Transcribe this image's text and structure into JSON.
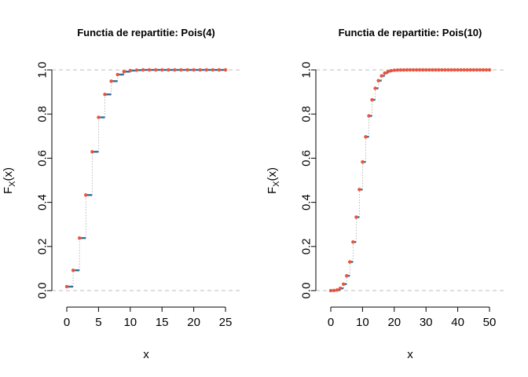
{
  "colors": {
    "step": "#2f6f98",
    "point": "#e8553e",
    "ref_line": "#bdbdbd"
  },
  "chart_data": [
    {
      "type": "line",
      "subtype": "step-cdf",
      "title": "Functia de repartitie: Pois(4)",
      "xlabel": "x",
      "ylabel": "F",
      "ylabel_sub": "X",
      "ylabel_suffix": "(x)",
      "lambda": 4,
      "xlim": [
        0,
        25
      ],
      "ylim": [
        0,
        1
      ],
      "xticks": [
        0,
        5,
        10,
        15,
        20,
        25
      ],
      "yticks": [
        0.0,
        0.2,
        0.4,
        0.6,
        0.8,
        1.0
      ],
      "ytick_labels": [
        "0.0",
        "0.2",
        "0.4",
        "0.6",
        "0.8",
        "1.0"
      ],
      "ref_lines_y": [
        0,
        1
      ],
      "grid": false,
      "x": [
        0,
        1,
        2,
        3,
        4,
        5,
        6,
        7,
        8,
        9,
        10,
        11,
        12,
        13,
        14,
        15,
        16,
        17,
        18,
        19,
        20,
        21,
        22,
        23,
        24,
        25
      ],
      "y": [
        0.018,
        0.092,
        0.238,
        0.433,
        0.629,
        0.785,
        0.889,
        0.949,
        0.979,
        0.992,
        0.997,
        0.999,
        1.0,
        1.0,
        1.0,
        1.0,
        1.0,
        1.0,
        1.0,
        1.0,
        1.0,
        1.0,
        1.0,
        1.0,
        1.0,
        1.0
      ]
    },
    {
      "type": "line",
      "subtype": "step-cdf",
      "title": "Functia de repartitie: Pois(10)",
      "xlabel": "x",
      "ylabel": "F",
      "ylabel_sub": "X",
      "ylabel_suffix": "(x)",
      "lambda": 10,
      "xlim": [
        0,
        50
      ],
      "ylim": [
        0,
        1
      ],
      "xticks": [
        0,
        10,
        20,
        30,
        40,
        50
      ],
      "yticks": [
        0.0,
        0.2,
        0.4,
        0.6,
        0.8,
        1.0
      ],
      "ytick_labels": [
        "0.0",
        "0.2",
        "0.4",
        "0.6",
        "0.8",
        "1.0"
      ],
      "ref_lines_y": [
        0,
        1
      ],
      "grid": false,
      "x": [
        0,
        1,
        2,
        3,
        4,
        5,
        6,
        7,
        8,
        9,
        10,
        11,
        12,
        13,
        14,
        15,
        16,
        17,
        18,
        19,
        20,
        21,
        22,
        23,
        24,
        25,
        26,
        27,
        28,
        29,
        30,
        31,
        32,
        33,
        34,
        35,
        36,
        37,
        38,
        39,
        40,
        41,
        42,
        43,
        44,
        45,
        46,
        47,
        48,
        49,
        50
      ],
      "y": [
        0.0,
        0.0005,
        0.0028,
        0.0103,
        0.0293,
        0.0671,
        0.1301,
        0.2202,
        0.3328,
        0.4579,
        0.583,
        0.6968,
        0.7916,
        0.8645,
        0.9165,
        0.9513,
        0.973,
        0.9857,
        0.9928,
        0.9965,
        0.9984,
        0.9993,
        0.9997,
        0.9999,
        1.0,
        1.0,
        1.0,
        1.0,
        1.0,
        1.0,
        1.0,
        1.0,
        1.0,
        1.0,
        1.0,
        1.0,
        1.0,
        1.0,
        1.0,
        1.0,
        1.0,
        1.0,
        1.0,
        1.0,
        1.0,
        1.0,
        1.0,
        1.0,
        1.0,
        1.0,
        1.0
      ]
    }
  ]
}
